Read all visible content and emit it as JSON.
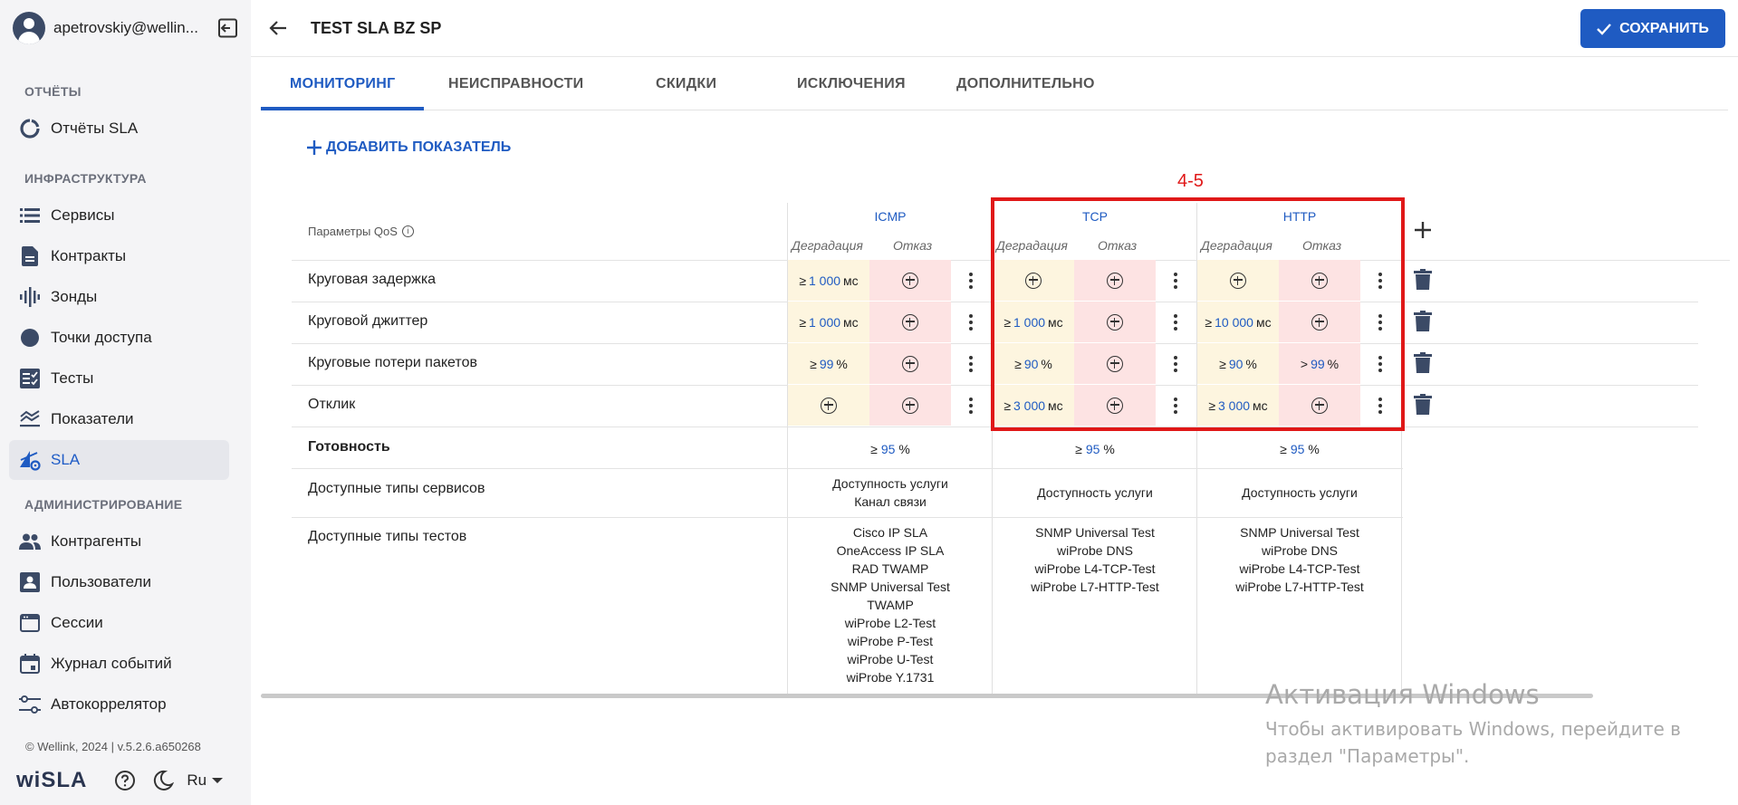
{
  "sidebar": {
    "user_email": "apetrovskiy@wellin...",
    "sections": {
      "reports": "ОТЧЁТЫ",
      "infrastructure": "ИНФРАСТРУКТУРА",
      "administration": "АДМИНИСТРИРОВАНИЕ"
    },
    "items": [
      {
        "label": "Отчёты SLA",
        "icon": "sla-report-icon"
      },
      {
        "label": "Сервисы",
        "icon": "list-icon"
      },
      {
        "label": "Контракты",
        "icon": "document-icon"
      },
      {
        "label": "Зонды",
        "icon": "waveform-icon"
      },
      {
        "label": "Точки доступа",
        "icon": "circle-icon"
      },
      {
        "label": "Тесты",
        "icon": "checklist-icon"
      },
      {
        "label": "Показатели",
        "icon": "layers-icon"
      },
      {
        "label": "SLA",
        "icon": "sla-icon",
        "active": true
      },
      {
        "label": "Контрагенты",
        "icon": "people-icon"
      },
      {
        "label": "Пользователи",
        "icon": "user-card-icon"
      },
      {
        "label": "Сессии",
        "icon": "window-icon"
      },
      {
        "label": "Журнал событий",
        "icon": "calendar-icon"
      },
      {
        "label": "Автокоррелятор",
        "icon": "sliders-icon"
      }
    ],
    "footer": {
      "copyright": "© Wellink, 2024 | v.5.2.6.a650268",
      "logo": "wiSLA",
      "language": "Ru"
    }
  },
  "header": {
    "title": "TEST SLA BZ SP",
    "save_label": "СОХРАНИТЬ"
  },
  "tabs": [
    "МОНИТОРИНГ",
    "НЕИСПРАВНОСТИ",
    "СКИДКИ",
    "ИСКЛЮЧЕНИЯ",
    "ДОПОЛНИТЕЛЬНО"
  ],
  "add_indicator_label": "ДОБАВИТЬ ПОКАЗАТЕЛЬ",
  "annotation_label": "4-5",
  "table": {
    "qos_header": "Параметры QoS",
    "groups": [
      "ICMP",
      "TCP",
      "HTTP"
    ],
    "degradation_label": "Деградация",
    "failure_label": "Отказ",
    "rows": [
      {
        "label": "Круговая задержка",
        "cells": [
          {
            "deg": {
              "op": "≥",
              "val": "1 000",
              "unit": "мс"
            },
            "fail": null
          },
          {
            "deg": null,
            "fail": null
          },
          {
            "deg": null,
            "fail": null
          }
        ]
      },
      {
        "label": "Круговой джиттер",
        "cells": [
          {
            "deg": {
              "op": "≥",
              "val": "1 000",
              "unit": "мс"
            },
            "fail": null
          },
          {
            "deg": {
              "op": "≥",
              "val": "1 000",
              "unit": "мс"
            },
            "fail": null
          },
          {
            "deg": {
              "op": "≥",
              "val": "10 000",
              "unit": "мс"
            },
            "fail": null
          }
        ]
      },
      {
        "label": "Круговые потери пакетов",
        "cells": [
          {
            "deg": {
              "op": "≥",
              "val": "99",
              "unit": "%"
            },
            "fail": null
          },
          {
            "deg": {
              "op": "≥",
              "val": "90",
              "unit": "%"
            },
            "fail": null
          },
          {
            "deg": {
              "op": "≥",
              "val": "90",
              "unit": "%"
            },
            "fail": {
              "op": ">",
              "val": "99",
              "unit": "%"
            }
          }
        ]
      },
      {
        "label": "Отклик",
        "cells": [
          {
            "deg": null,
            "fail": null
          },
          {
            "deg": {
              "op": "≥",
              "val": "3 000",
              "unit": "мс"
            },
            "fail": null
          },
          {
            "deg": {
              "op": "≥",
              "val": "3 000",
              "unit": "мс"
            },
            "fail": null
          }
        ]
      }
    ],
    "availability": {
      "label": "Готовность",
      "values": [
        {
          "op": "≥",
          "val": "95",
          "unit": "%"
        },
        {
          "op": "≥",
          "val": "95",
          "unit": "%"
        },
        {
          "op": "≥",
          "val": "95",
          "unit": "%"
        }
      ]
    },
    "service_types": {
      "label": "Доступные типы сервисов",
      "values": [
        [
          "Доступность услуги",
          "Канал связи"
        ],
        [
          "Доступность услуги"
        ],
        [
          "Доступность услуги"
        ]
      ]
    },
    "test_types": {
      "label": "Доступные типы тестов",
      "values": [
        [
          "Cisco IP SLA",
          "OneAccess IP SLA",
          "RAD TWAMP",
          "SNMP Universal Test",
          "TWAMP",
          "wiProbe L2-Test",
          "wiProbe P-Test",
          "wiProbe U-Test",
          "wiProbe Y.1731"
        ],
        [
          "SNMP Universal Test",
          "wiProbe DNS",
          "wiProbe L4-TCP-Test",
          "wiProbe L7-HTTP-Test"
        ],
        [
          "SNMP Universal Test",
          "wiProbe DNS",
          "wiProbe L4-TCP-Test",
          "wiProbe L7-HTTP-Test"
        ]
      ]
    }
  },
  "windows_watermark": {
    "title": "Активация Windows",
    "text": "Чтобы активировать Windows, перейдите в раздел \"Параметры\"."
  },
  "colors": {
    "accent": "#1f5bc2",
    "degradation_bg": "#fdf5df",
    "failure_bg": "#fde3e3",
    "annotation": "#e01818"
  }
}
